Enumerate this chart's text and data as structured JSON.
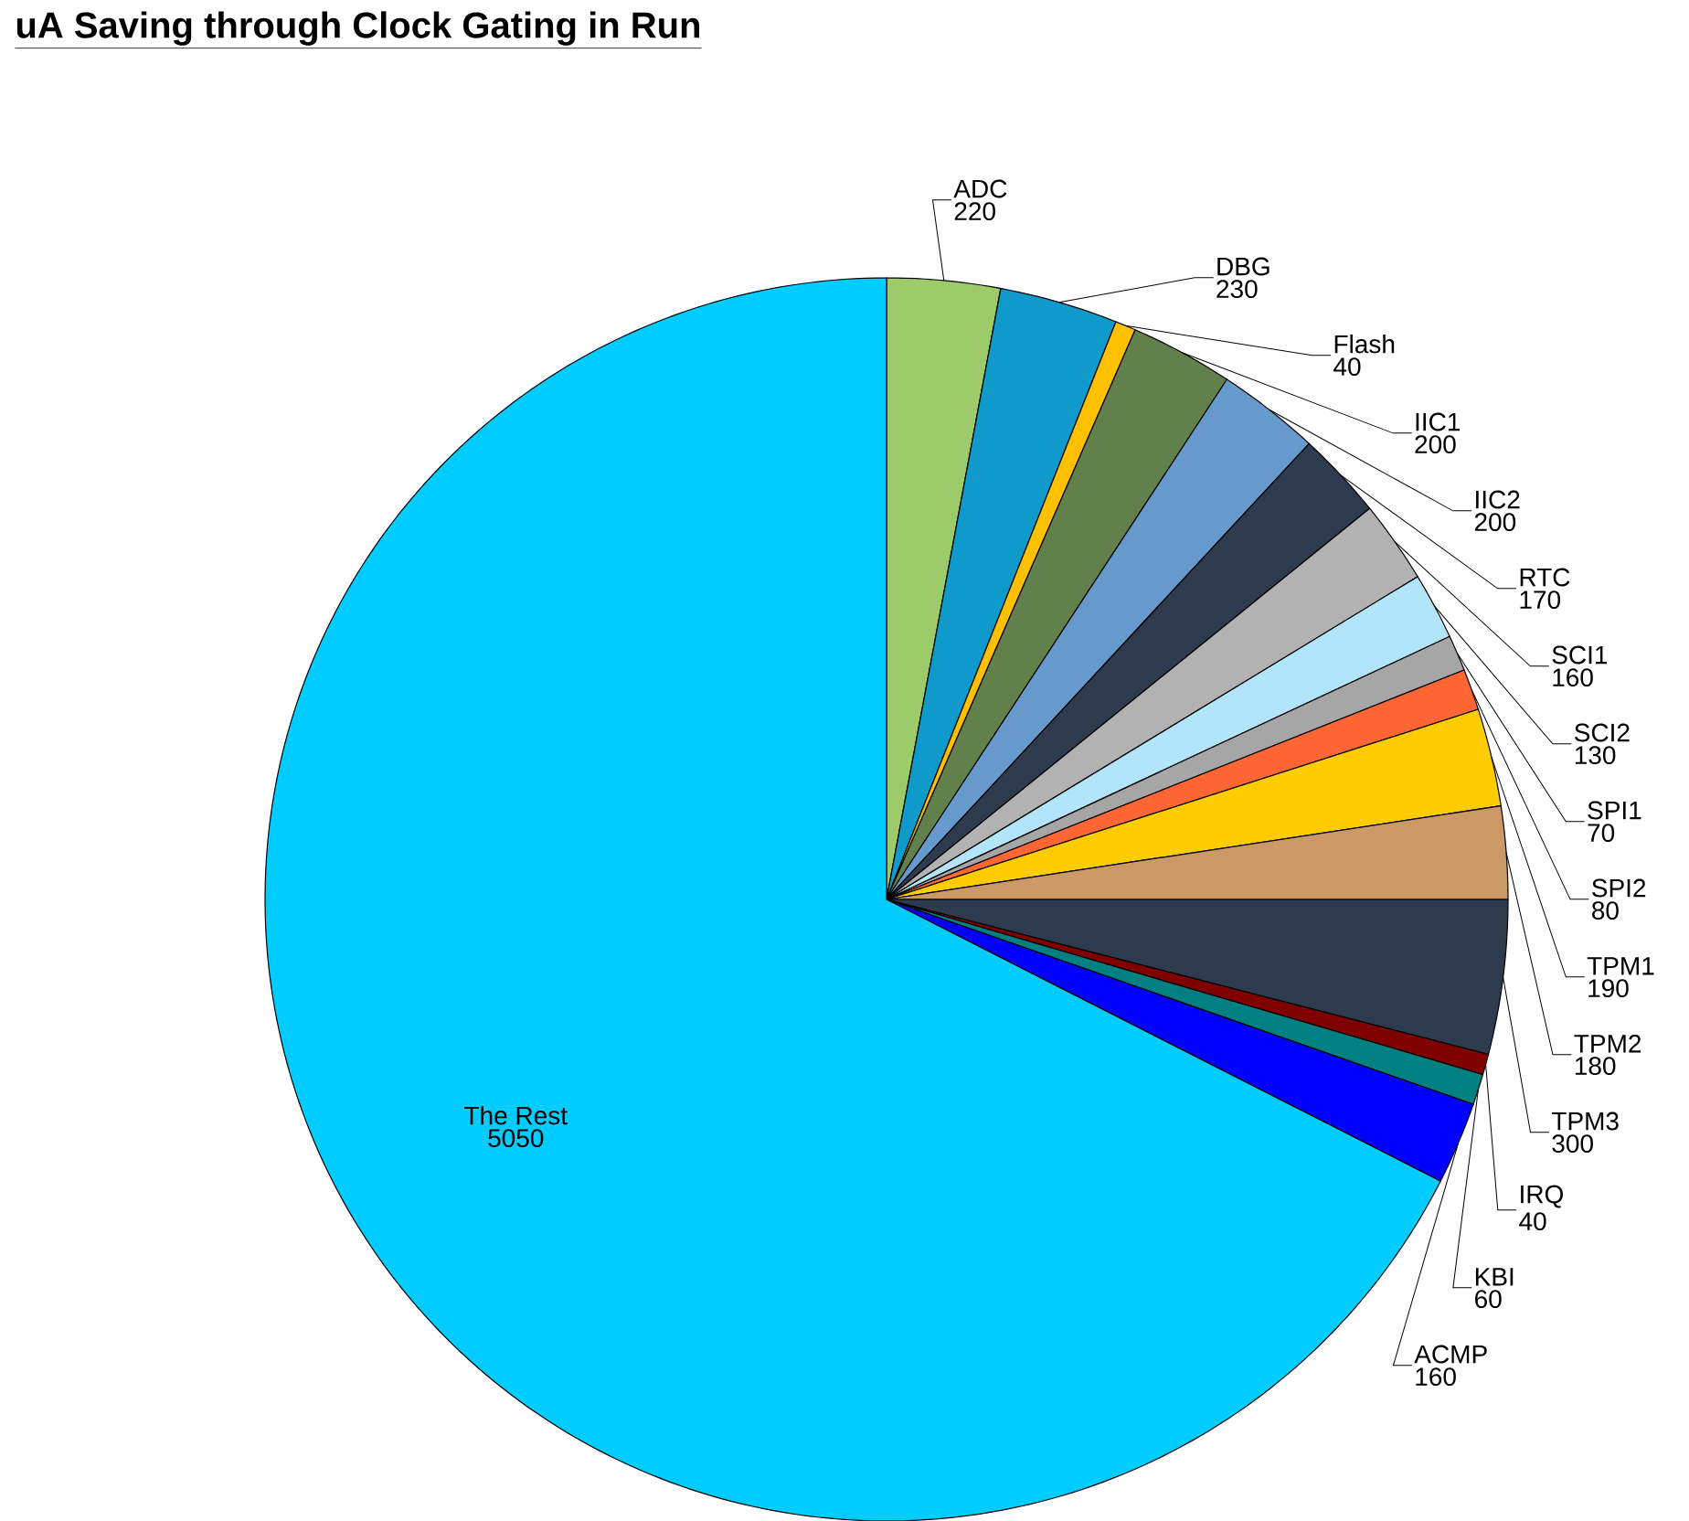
{
  "chart_data": {
    "type": "pie",
    "title": "uA Saving through Clock Gating in Run",
    "categories": [
      "ADC",
      "DBG",
      "Flash",
      "IIC1",
      "IIC2",
      "RTC",
      "SCI1",
      "SCI2",
      "SPI1",
      "SPI2",
      "TPM1",
      "TPM2",
      "TPM3",
      "IRQ",
      "KBI",
      "ACMP",
      "The Rest"
    ],
    "values": [
      220,
      230,
      40,
      200,
      200,
      170,
      160,
      130,
      70,
      80,
      190,
      180,
      300,
      40,
      60,
      160,
      5050
    ],
    "colors": [
      "#9dcb6a",
      "#0f9acb",
      "#ffc000",
      "#62804c",
      "#669acc",
      "#2e3b4e",
      "#b2b2b2",
      "#b3e5fa",
      "#a6a6a6",
      "#ff6633",
      "#ffcc00",
      "#cc9966",
      "#2e3b4e",
      "#800000",
      "#008080",
      "#0000ff",
      "#00ccff"
    ],
    "data_labels": true
  }
}
